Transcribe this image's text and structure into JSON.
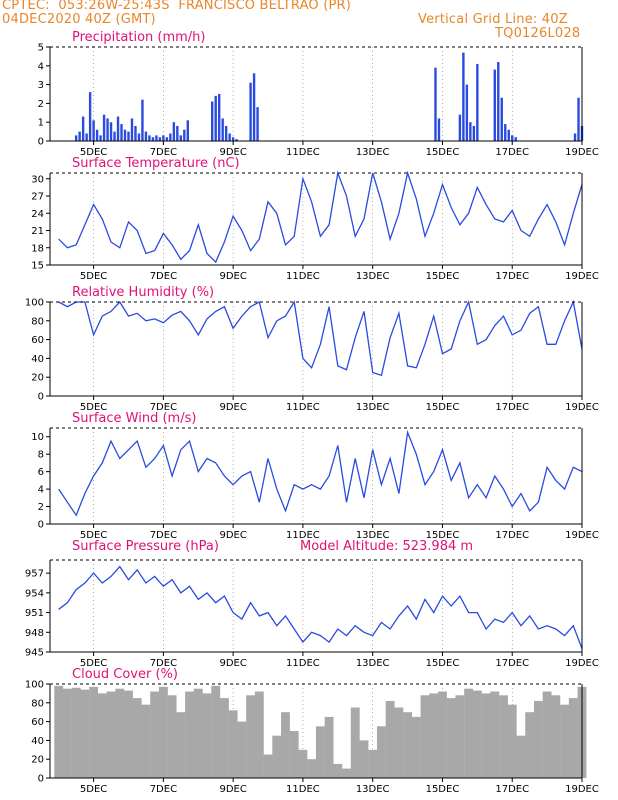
{
  "header": {
    "line1": "CPTEC:  053:26W-25:43S  FRANCISCO BELTRAO (PR)",
    "line2_left": "04DEC2020 40Z (GMT)",
    "line2_right": "Vertical Grid Line: 40Z",
    "line3_right": "TQ0126L028"
  },
  "colors": {
    "header": "#e8862a",
    "title": "#e0107a",
    "line": "#2a4be0",
    "bar": "#2a4be0",
    "cloud": "#a8a8a8"
  },
  "x_ticks": [
    "5DEC",
    "7DEC",
    "9DEC",
    "11DEC",
    "13DEC",
    "15DEC",
    "17DEC",
    "19DEC"
  ],
  "chart_data": [
    {
      "type": "bar",
      "title": "Precipitation (mm/h)",
      "ylim": [
        0,
        5
      ],
      "yticks": [
        0,
        1,
        2,
        3,
        4,
        5
      ],
      "x": [
        4.5,
        4.6,
        4.7,
        4.8,
        4.9,
        5.0,
        5.1,
        5.2,
        5.3,
        5.4,
        5.5,
        5.6,
        5.7,
        5.8,
        5.9,
        6.0,
        6.1,
        6.2,
        6.3,
        6.4,
        6.5,
        6.6,
        6.7,
        6.8,
        6.9,
        7.0,
        7.1,
        7.2,
        7.3,
        7.4,
        7.5,
        7.6,
        7.7,
        8.4,
        8.5,
        8.6,
        8.7,
        8.8,
        8.9,
        9.0,
        9.1,
        9.5,
        9.6,
        9.7,
        14.8,
        14.9,
        15.5,
        15.6,
        15.7,
        15.8,
        15.9,
        16.0,
        16.5,
        16.6,
        16.7,
        16.8,
        16.9,
        17.0,
        17.1,
        18.8,
        18.9,
        19.0
      ],
      "values": [
        0.3,
        0.5,
        1.3,
        0.4,
        2.6,
        1.1,
        0.6,
        0.3,
        1.4,
        1.2,
        1.0,
        0.5,
        1.3,
        0.9,
        0.6,
        0.5,
        1.2,
        0.8,
        0.4,
        2.2,
        0.5,
        0.3,
        0.2,
        0.3,
        0.2,
        0.3,
        0.2,
        0.4,
        1.0,
        0.8,
        0.3,
        0.6,
        1.1,
        2.1,
        2.4,
        2.5,
        1.2,
        0.8,
        0.4,
        0.2,
        0.1,
        3.1,
        3.6,
        1.8,
        3.9,
        1.2,
        1.4,
        4.7,
        3.0,
        1.0,
        0.8,
        4.1,
        3.8,
        4.2,
        2.3,
        0.9,
        0.6,
        0.3,
        0.2,
        0.4,
        2.3,
        0.8
      ]
    },
    {
      "type": "line",
      "title": "Surface Temperature (nC)",
      "ylim": [
        15,
        31
      ],
      "yticks": [
        15,
        18,
        21,
        24,
        27,
        30
      ],
      "x": [
        4.0,
        4.25,
        4.5,
        4.75,
        5.0,
        5.25,
        5.5,
        5.75,
        6.0,
        6.25,
        6.5,
        6.75,
        7.0,
        7.25,
        7.5,
        7.75,
        8.0,
        8.25,
        8.5,
        8.75,
        9.0,
        9.25,
        9.5,
        9.75,
        10.0,
        10.25,
        10.5,
        10.75,
        11.0,
        11.25,
        11.5,
        11.75,
        12.0,
        12.25,
        12.5,
        12.75,
        13.0,
        13.25,
        13.5,
        13.75,
        14.0,
        14.25,
        14.5,
        14.75,
        15.0,
        15.25,
        15.5,
        15.75,
        16.0,
        16.25,
        16.5,
        16.75,
        17.0,
        17.25,
        17.5,
        17.75,
        18.0,
        18.25,
        18.5,
        18.75,
        19.0
      ],
      "values": [
        19.5,
        18.0,
        18.5,
        22.0,
        25.5,
        23.0,
        19.0,
        18.0,
        22.5,
        21.0,
        17.0,
        17.5,
        20.5,
        18.5,
        16.0,
        17.5,
        22.0,
        17.0,
        15.5,
        19.0,
        23.5,
        21.0,
        17.5,
        19.5,
        26.0,
        24.0,
        18.5,
        20.0,
        30.0,
        26.0,
        20.0,
        22.0,
        31.0,
        27.0,
        20.0,
        23.0,
        31.0,
        26.0,
        19.5,
        24.0,
        31.0,
        26.5,
        20.0,
        24.0,
        29.0,
        25.0,
        22.0,
        24.0,
        28.5,
        25.5,
        23.0,
        22.5,
        24.5,
        21.0,
        20.0,
        23.0,
        25.5,
        22.5,
        18.5,
        24.0,
        29.0
      ]
    },
    {
      "type": "line",
      "title": "Relative Humidity (%)",
      "ylim": [
        0,
        100
      ],
      "yticks": [
        0,
        20,
        40,
        60,
        80,
        100
      ],
      "x": [
        4.0,
        4.25,
        4.5,
        4.75,
        5.0,
        5.25,
        5.5,
        5.75,
        6.0,
        6.25,
        6.5,
        6.75,
        7.0,
        7.25,
        7.5,
        7.75,
        8.0,
        8.25,
        8.5,
        8.75,
        9.0,
        9.25,
        9.5,
        9.75,
        10.0,
        10.25,
        10.5,
        10.75,
        11.0,
        11.25,
        11.5,
        11.75,
        12.0,
        12.25,
        12.5,
        12.75,
        13.0,
        13.25,
        13.5,
        13.75,
        14.0,
        14.25,
        14.5,
        14.75,
        15.0,
        15.25,
        15.5,
        15.75,
        16.0,
        16.25,
        16.5,
        16.75,
        17.0,
        17.25,
        17.5,
        17.75,
        18.0,
        18.25,
        18.5,
        18.75,
        19.0
      ],
      "values": [
        100,
        95,
        100,
        100,
        65,
        85,
        90,
        100,
        85,
        88,
        80,
        82,
        78,
        86,
        90,
        80,
        65,
        82,
        90,
        95,
        72,
        85,
        95,
        100,
        62,
        80,
        85,
        100,
        40,
        30,
        55,
        95,
        32,
        28,
        62,
        90,
        25,
        22,
        62,
        88,
        32,
        30,
        55,
        85,
        45,
        50,
        80,
        100,
        55,
        60,
        75,
        85,
        65,
        70,
        88,
        95,
        55,
        55,
        80,
        100,
        50
      ]
    },
    {
      "type": "line",
      "title": "Surface Wind (m/s)",
      "ylim": [
        0,
        11
      ],
      "yticks": [
        0,
        2,
        4,
        6,
        8,
        10
      ],
      "x": [
        4.0,
        4.25,
        4.5,
        4.75,
        5.0,
        5.25,
        5.5,
        5.75,
        6.0,
        6.25,
        6.5,
        6.75,
        7.0,
        7.25,
        7.5,
        7.75,
        8.0,
        8.25,
        8.5,
        8.75,
        9.0,
        9.25,
        9.5,
        9.75,
        10.0,
        10.25,
        10.5,
        10.75,
        11.0,
        11.25,
        11.5,
        11.75,
        12.0,
        12.25,
        12.5,
        12.75,
        13.0,
        13.25,
        13.5,
        13.75,
        14.0,
        14.25,
        14.5,
        14.75,
        15.0,
        15.25,
        15.5,
        15.75,
        16.0,
        16.25,
        16.5,
        16.75,
        17.0,
        17.25,
        17.5,
        17.75,
        18.0,
        18.25,
        18.5,
        18.75,
        19.0
      ],
      "values": [
        4.0,
        2.5,
        1.0,
        3.5,
        5.5,
        7.0,
        9.5,
        7.5,
        8.5,
        9.5,
        6.5,
        7.5,
        9.0,
        5.5,
        8.5,
        9.5,
        6.0,
        7.5,
        7.0,
        5.5,
        4.5,
        5.5,
        6.0,
        2.5,
        7.5,
        4.0,
        1.5,
        4.5,
        4.0,
        4.5,
        4.0,
        5.5,
        9.0,
        2.5,
        7.5,
        3.0,
        8.5,
        4.5,
        7.5,
        3.5,
        10.5,
        8.0,
        4.5,
        6.0,
        8.5,
        5.0,
        7.0,
        3.0,
        4.5,
        3.0,
        5.5,
        4.0,
        2.0,
        3.5,
        1.5,
        2.5,
        6.5,
        5.0,
        4.0,
        6.5,
        6.0
      ]
    },
    {
      "type": "line",
      "title": "Surface Pressure (hPa)",
      "annotation": "Model Altitude: 523.984 m",
      "ylim": [
        945,
        959
      ],
      "yticks": [
        945,
        948,
        951,
        954,
        957
      ],
      "x": [
        4.0,
        4.25,
        4.5,
        4.75,
        5.0,
        5.25,
        5.5,
        5.75,
        6.0,
        6.25,
        6.5,
        6.75,
        7.0,
        7.25,
        7.5,
        7.75,
        8.0,
        8.25,
        8.5,
        8.75,
        9.0,
        9.25,
        9.5,
        9.75,
        10.0,
        10.25,
        10.5,
        10.75,
        11.0,
        11.25,
        11.5,
        11.75,
        12.0,
        12.25,
        12.5,
        12.75,
        13.0,
        13.25,
        13.5,
        13.75,
        14.0,
        14.25,
        14.5,
        14.75,
        15.0,
        15.25,
        15.5,
        15.75,
        16.0,
        16.25,
        16.5,
        16.75,
        17.0,
        17.25,
        17.5,
        17.75,
        18.0,
        18.25,
        18.5,
        18.75,
        19.0
      ],
      "values": [
        951.5,
        952.5,
        954.5,
        955.5,
        957.0,
        955.5,
        956.5,
        958.0,
        956.0,
        957.5,
        955.5,
        956.5,
        955.0,
        956.0,
        954.0,
        955.0,
        953.0,
        954.0,
        952.5,
        953.5,
        951.0,
        950.0,
        952.5,
        950.5,
        951.0,
        949.0,
        950.5,
        948.5,
        946.5,
        948.0,
        947.5,
        946.5,
        948.5,
        947.5,
        949.0,
        948.0,
        947.5,
        949.5,
        948.5,
        950.5,
        952.0,
        950.0,
        953.0,
        951.0,
        953.5,
        952.0,
        953.5,
        951.0,
        951.0,
        948.5,
        950.0,
        949.5,
        951.0,
        949.0,
        950.5,
        948.5,
        949.0,
        948.5,
        947.5,
        949.0,
        945.5
      ]
    },
    {
      "type": "area",
      "title": "Cloud Cover (%)",
      "ylim": [
        0,
        100
      ],
      "yticks": [
        0,
        20,
        40,
        60,
        80,
        100
      ],
      "x": [
        4.0,
        4.25,
        4.5,
        4.75,
        5.0,
        5.25,
        5.5,
        5.75,
        6.0,
        6.25,
        6.5,
        6.75,
        7.0,
        7.25,
        7.5,
        7.75,
        8.0,
        8.25,
        8.5,
        8.75,
        9.0,
        9.25,
        9.5,
        9.75,
        10.0,
        10.25,
        10.5,
        10.75,
        11.0,
        11.25,
        11.5,
        11.75,
        12.0,
        12.25,
        12.5,
        12.75,
        13.0,
        13.25,
        13.5,
        13.75,
        14.0,
        14.25,
        14.5,
        14.75,
        15.0,
        15.25,
        15.5,
        15.75,
        16.0,
        16.25,
        16.5,
        16.75,
        17.0,
        17.25,
        17.5,
        17.75,
        18.0,
        18.25,
        18.5,
        18.75,
        19.0
      ],
      "values": [
        98,
        95,
        96,
        94,
        97,
        90,
        92,
        95,
        93,
        85,
        78,
        92,
        97,
        88,
        70,
        92,
        95,
        90,
        98,
        85,
        72,
        60,
        88,
        92,
        25,
        45,
        70,
        50,
        30,
        20,
        55,
        65,
        15,
        10,
        75,
        40,
        30,
        55,
        82,
        75,
        70,
        65,
        88,
        90,
        92,
        85,
        88,
        95,
        93,
        90,
        92,
        88,
        78,
        45,
        70,
        82,
        92,
        88,
        78,
        85,
        97
      ]
    }
  ]
}
